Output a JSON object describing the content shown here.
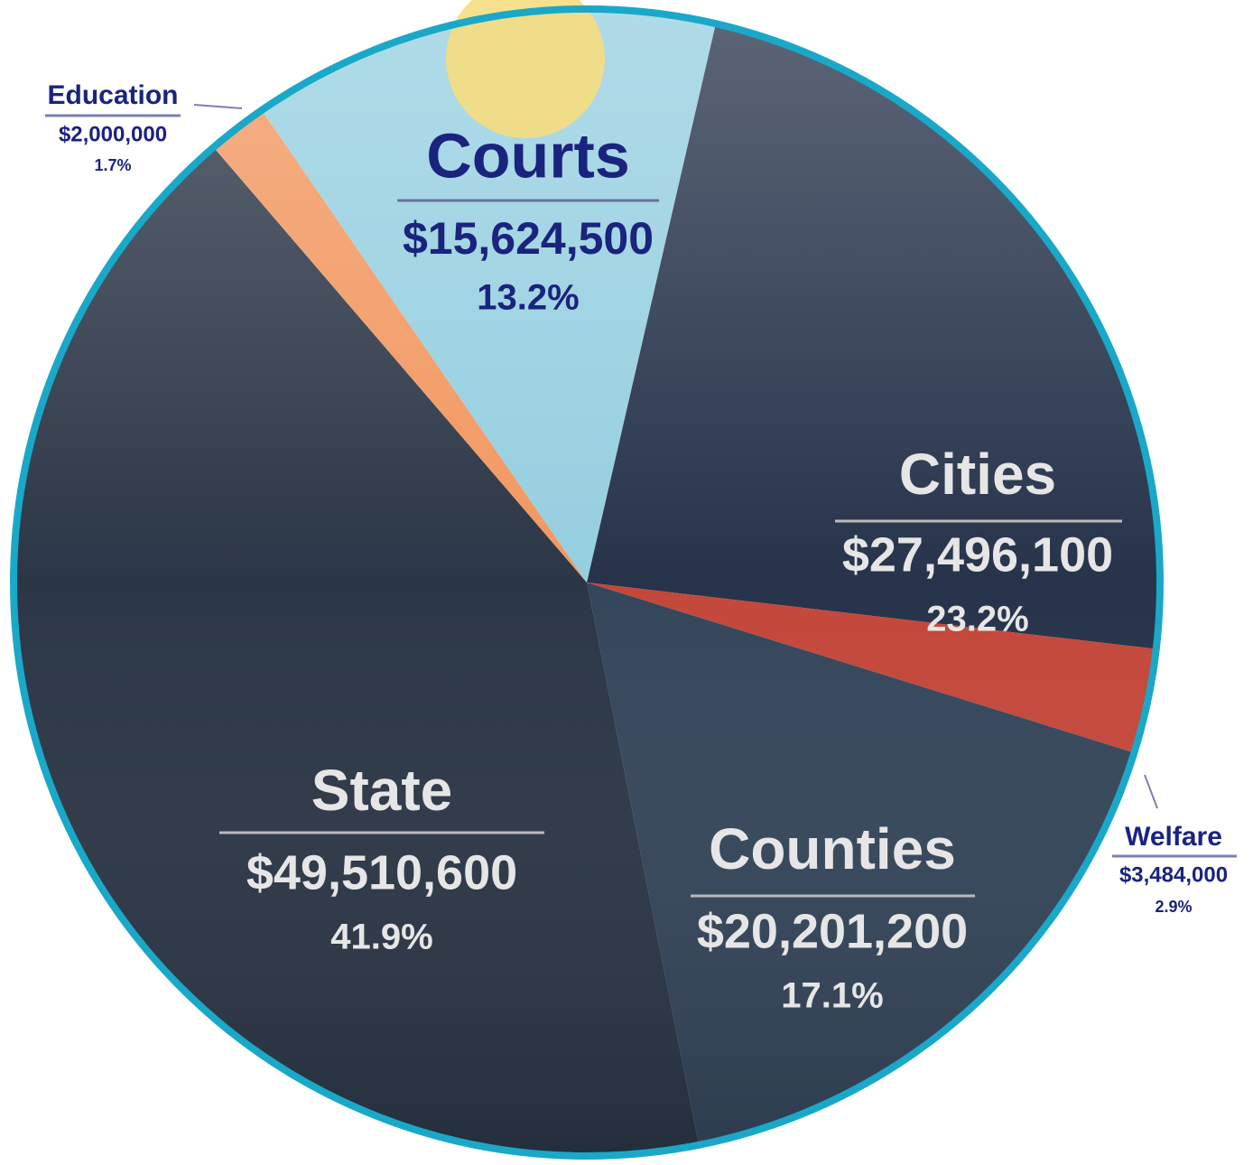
{
  "chart_data": {
    "type": "pie",
    "categories": [
      "Cities",
      "Welfare",
      "Counties",
      "State",
      "Education",
      "Courts"
    ],
    "values": [
      27496100,
      3484000,
      20201200,
      49510600,
      2000000,
      15624500
    ],
    "value_labels": [
      "$27,496,100",
      "$3,484,000",
      "$20,201,200",
      "$49,510,600",
      "$2,000,000",
      "$15,624,500"
    ],
    "shares": [
      23.2,
      2.9,
      17.1,
      41.9,
      1.7,
      13.2
    ],
    "share_labels": [
      "23.2%",
      "2.9%",
      "17.1%",
      "41.9%",
      "1.7%",
      "13.2%"
    ],
    "colors": [
      "#26334a",
      "#c4473a",
      "#34465a",
      "#2b3646",
      "#f2975f",
      "#95cfe0"
    ]
  }
}
